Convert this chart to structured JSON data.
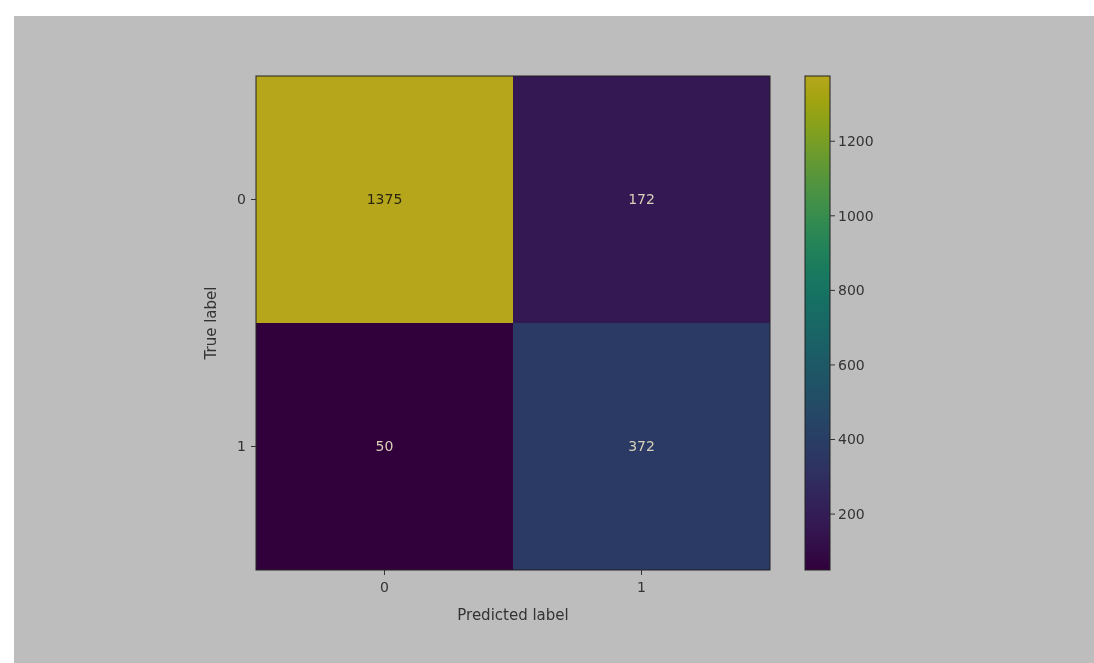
{
  "chart_data": {
    "type": "heatmap",
    "xlabel": "Predicted label",
    "ylabel": "True label",
    "categories": [
      "0",
      "1"
    ],
    "y_categories": [
      "0",
      "1"
    ],
    "cells": [
      [
        1375,
        172
      ],
      [
        50,
        372
      ]
    ],
    "clim": [
      50,
      1375
    ],
    "cticks": [
      200,
      400,
      600,
      800,
      1000,
      1200
    ],
    "data_labels": true
  }
}
